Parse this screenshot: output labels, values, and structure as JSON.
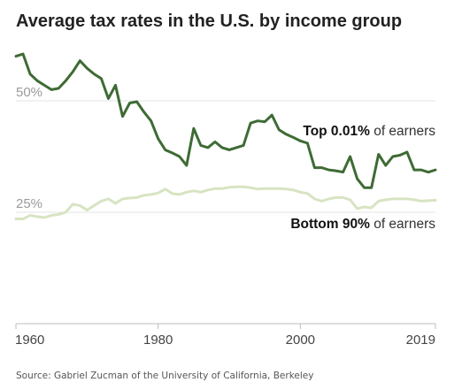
{
  "chart_data": {
    "type": "line",
    "title": "Average tax rates in the U.S. by income group",
    "source": "Source: Gabriel Zucman of the University of California, Berkeley",
    "xlim": [
      1960,
      2019
    ],
    "ylim": [
      0,
      62
    ],
    "x_ticks": [
      {
        "value": 1960,
        "label": "1960"
      },
      {
        "value": 1980,
        "label": "1980"
      },
      {
        "value": 2000,
        "label": "2000"
      },
      {
        "value": 2019,
        "label": "2019"
      }
    ],
    "y_ticks": [
      {
        "value": 50,
        "label": "50%"
      },
      {
        "value": 25,
        "label": "25%"
      }
    ],
    "series": [
      {
        "key": "top",
        "label_bold": "Top 0.01%",
        "label_rest": " of earners",
        "color": "#3e6b34",
        "x": [
          1960,
          1961,
          1962,
          1963,
          1964,
          1965,
          1966,
          1967,
          1968,
          1969,
          1970,
          1971,
          1972,
          1973,
          1974,
          1975,
          1976,
          1977,
          1978,
          1979,
          1980,
          1981,
          1982,
          1983,
          1984,
          1985,
          1986,
          1987,
          1988,
          1989,
          1990,
          1991,
          1992,
          1993,
          1994,
          1995,
          1996,
          1997,
          1998,
          1999,
          2000,
          2001,
          2002,
          2003,
          2004,
          2005,
          2006,
          2007,
          2008,
          2009,
          2010,
          2011,
          2012,
          2013,
          2014,
          2015,
          2016,
          2017,
          2018,
          2019
        ],
        "values": [
          60,
          60.5,
          56,
          54.5,
          53.5,
          52.5,
          52.8,
          54.5,
          56.5,
          59,
          57.3,
          56,
          55,
          50.5,
          53.5,
          46.5,
          49.5,
          49.8,
          47.5,
          45.5,
          41.5,
          39,
          38.3,
          37.5,
          35.5,
          43.8,
          40,
          39.5,
          40.8,
          39.5,
          39,
          39.5,
          40,
          45,
          45.5,
          45.3,
          46.8,
          43.5,
          42.5,
          41.8,
          41,
          40.5,
          35,
          35,
          34.5,
          34.3,
          34,
          37.5,
          32.5,
          30.5,
          30.5,
          38,
          35.5,
          37.5,
          37.8,
          38.5,
          34.5,
          34.5,
          34,
          34.5
        ]
      },
      {
        "key": "bottom",
        "label_bold": "Bottom 90%",
        "label_rest": " of earners",
        "color": "#d7e4c2",
        "x": [
          1960,
          1961,
          1962,
          1963,
          1964,
          1965,
          1966,
          1967,
          1968,
          1969,
          1970,
          1971,
          1972,
          1973,
          1974,
          1975,
          1976,
          1977,
          1978,
          1979,
          1980,
          1981,
          1982,
          1983,
          1984,
          1985,
          1986,
          1987,
          1988,
          1989,
          1990,
          1991,
          1992,
          1993,
          1994,
          1995,
          1996,
          1997,
          1998,
          1999,
          2000,
          2001,
          2002,
          2003,
          2004,
          2005,
          2006,
          2007,
          2008,
          2009,
          2010,
          2011,
          2012,
          2013,
          2014,
          2015,
          2016,
          2017,
          2018,
          2019
        ],
        "values": [
          23.5,
          23.5,
          24.3,
          24,
          23.8,
          24.3,
          24.5,
          25,
          26.8,
          26.5,
          25.5,
          26.5,
          27.5,
          28,
          27,
          28,
          28.2,
          28.3,
          28.8,
          29,
          29.3,
          30.2,
          29.2,
          29,
          29.5,
          29.8,
          29.5,
          30,
          30.3,
          30.3,
          30.6,
          30.7,
          30.7,
          30.5,
          30.2,
          30.3,
          30.3,
          30.3,
          30.2,
          30,
          29.5,
          29.2,
          28,
          27.5,
          28,
          28.3,
          28.3,
          27.8,
          25.8,
          26.2,
          26,
          27.5,
          27.8,
          28,
          28,
          28,
          27.8,
          27.5,
          27.6,
          27.7
        ]
      }
    ]
  }
}
